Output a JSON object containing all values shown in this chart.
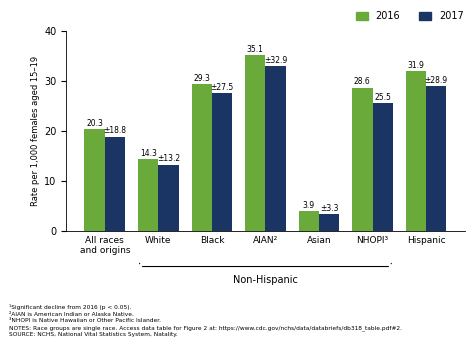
{
  "categories": [
    "All races\nand origins",
    "White",
    "Black",
    "AIAN²",
    "Asian",
    "NHOPI³",
    "Hispanic"
  ],
  "values_2016": [
    20.3,
    14.3,
    29.3,
    35.1,
    3.9,
    28.6,
    31.9
  ],
  "values_2017": [
    18.8,
    13.2,
    27.5,
    32.9,
    3.3,
    25.5,
    28.9
  ],
  "labels_2016": [
    "20.3",
    "14.3",
    "29.3",
    "35.1",
    "3.9",
    "28.6",
    "31.9"
  ],
  "labels_2017": [
    "±18.8",
    "±13.2",
    "±27.5",
    "±32.9",
    "±3.3",
    "25.5",
    "±28.9"
  ],
  "color_2016": "#6aaa3a",
  "color_2017": "#1a3464",
  "ylabel": "Rate per 1,000 females aged 15–19",
  "xlabel_nonhisp": "Non-Hispanic",
  "ylim": [
    0,
    40
  ],
  "yticks": [
    0,
    10,
    20,
    30,
    40
  ],
  "legend_2016": "2016",
  "legend_2017": "2017",
  "footnote1": "¹Significant decline from 2016 (p < 0.05).",
  "footnote2": "²AIAN is American Indian or Alaska Native.",
  "footnote3": "³NHOPI is Native Hawaiian or Other Pacific Islander.",
  "footnote4": "NOTES: Race groups are single race. Access data table for Figure 2 at: https://www.cdc.gov/nchs/data/databriefs/db318_table.pdf#2.",
  "footnote5": "SOURCE: NCHS, National Vital Statistics System, Natality.",
  "bar_width": 0.38
}
